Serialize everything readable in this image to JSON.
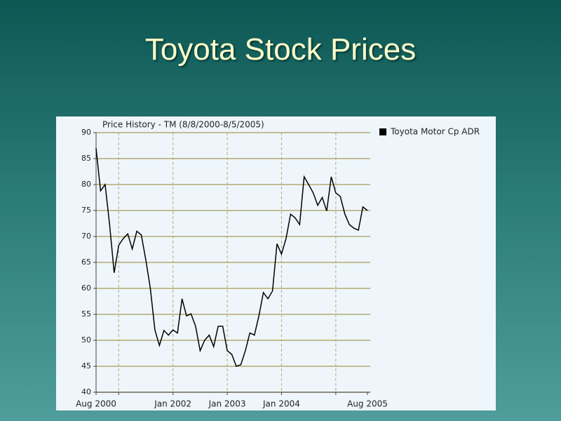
{
  "slide_title": "Toyota Stock Prices",
  "chart_data": {
    "type": "line",
    "title": "Price History - TM (8/8/2000-8/5/2005)",
    "x": [
      "2000-08",
      "2000-09",
      "2000-10",
      "2000-11",
      "2000-12",
      "2001-01",
      "2001-02",
      "2001-03",
      "2001-04",
      "2001-05",
      "2001-06",
      "2001-07",
      "2001-08",
      "2001-09",
      "2001-10",
      "2001-11",
      "2001-12",
      "2002-01",
      "2002-02",
      "2002-03",
      "2002-04",
      "2002-05",
      "2002-06",
      "2002-07",
      "2002-08",
      "2002-09",
      "2002-10",
      "2002-11",
      "2002-12",
      "2003-01",
      "2003-02",
      "2003-03",
      "2003-04",
      "2003-05",
      "2003-06",
      "2003-07",
      "2003-08",
      "2003-09",
      "2003-10",
      "2003-11",
      "2003-12",
      "2004-01",
      "2004-02",
      "2004-03",
      "2004-04",
      "2004-05",
      "2004-06",
      "2004-07",
      "2004-08",
      "2004-09",
      "2004-10",
      "2004-11",
      "2004-12",
      "2005-01",
      "2005-02",
      "2005-03",
      "2005-04",
      "2005-05",
      "2005-06",
      "2005-07",
      "2005-08"
    ],
    "series": [
      {
        "name": "Toyota Motor Cp ADR",
        "color": "#000000",
        "values": [
          87,
          78.8,
          80,
          72.3,
          63,
          68.3,
          69.6,
          70.5,
          67.6,
          71,
          70.3,
          65.5,
          60,
          52,
          49,
          51.9,
          51,
          52,
          51.4,
          58,
          54.7,
          55.1,
          52.7,
          48,
          50,
          51,
          48.8,
          52.7,
          52.7,
          48,
          47.3,
          45,
          45.3,
          48,
          51.4,
          51,
          54.7,
          59.2,
          58,
          59.5,
          68.6,
          66.6,
          69.6,
          74.3,
          73.6,
          72.3,
          81.5,
          80,
          78.4,
          76,
          77.5,
          74.9,
          81.5,
          78.4,
          77.7,
          74.3,
          72.3,
          71.6,
          71.2,
          75.7,
          75
        ]
      }
    ],
    "xlim": [
      "2000-08",
      "2005-08"
    ],
    "xticks": [
      {
        "value": "2000-08",
        "label": "Aug 2000"
      },
      {
        "value": "2001-01",
        "label": null
      },
      {
        "value": "2002-01",
        "label": "Jan 2002"
      },
      {
        "value": "2003-01",
        "label": "Jan 2003"
      },
      {
        "value": "2004-01",
        "label": "Jan 2004"
      },
      {
        "value": "2005-01",
        "label": null
      },
      {
        "value": "2005-08",
        "label": "Aug 2005"
      }
    ],
    "ylim": [
      40,
      90
    ],
    "yticks": [
      40,
      45,
      50,
      55,
      60,
      65,
      70,
      75,
      80,
      85,
      90
    ],
    "grid": true,
    "legend": "right"
  }
}
